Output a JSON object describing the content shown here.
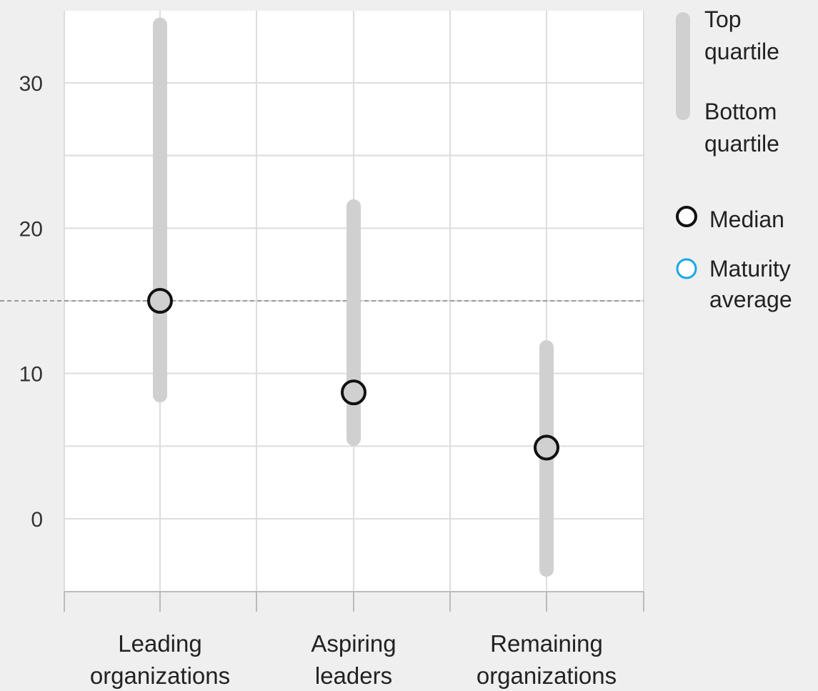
{
  "chart_data": {
    "type": "range",
    "y_ticks": [
      0,
      10,
      20,
      30
    ],
    "ylim": [
      -5,
      35
    ],
    "reference_line": 15,
    "categories": [
      {
        "label_lines": [
          "Leading",
          "organizations"
        ],
        "low": 8.5,
        "high": 34,
        "median": 15
      },
      {
        "label_lines": [
          "Aspiring",
          "leaders"
        ],
        "low": 5.5,
        "high": 21.5,
        "median": 8.7
      },
      {
        "label_lines": [
          "Remaining",
          "organizations"
        ],
        "low": -3.5,
        "high": 11.8,
        "median": 4.9
      }
    ],
    "legend": {
      "range_top_lines": [
        "Top",
        "quartile"
      ],
      "range_bottom_lines": [
        "Bottom",
        "quartile"
      ],
      "median_label": "Median",
      "average_lines": [
        "Maturity",
        "average"
      ]
    },
    "colors": {
      "background": "#efefef",
      "plot_background": "#ffffff",
      "range_bar": "#d0d0d0",
      "median_stroke": "#111111",
      "average_stroke": "#19a7e6",
      "grid": "#dddddd",
      "reference_line": "#999999"
    }
  }
}
